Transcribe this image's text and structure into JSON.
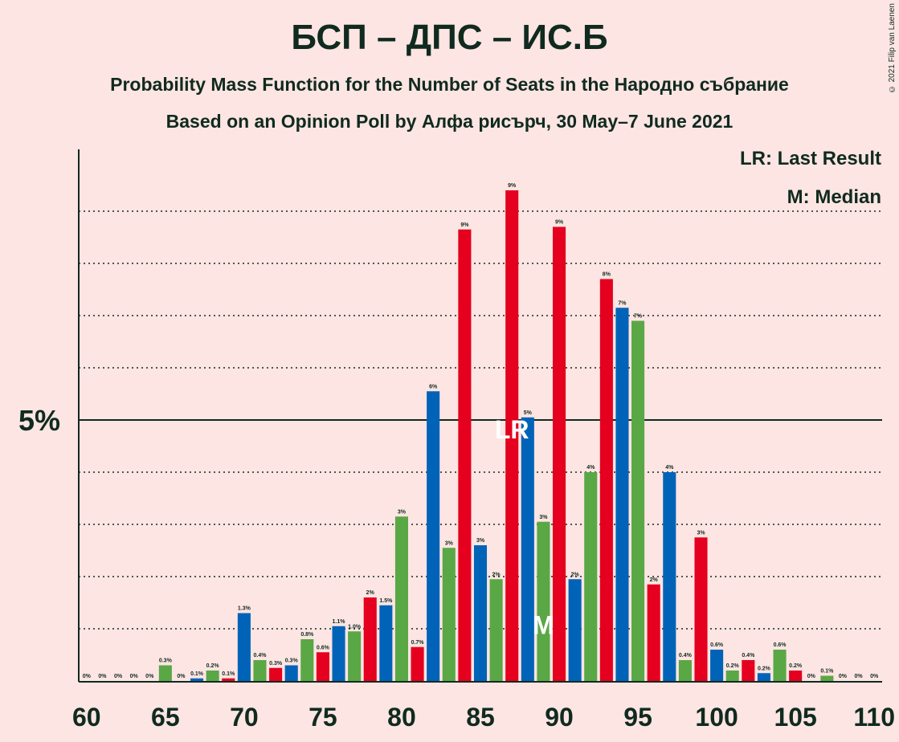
{
  "title": "БСП – ДПС – ИС.Б",
  "subtitle1": "Probability Mass Function for the Number of Seats in the Народно събрание",
  "subtitle2": "Based on an Opinion Poll by Алфа рисърч, 30 May–7 June 2021",
  "copyright": "© 2021 Filip van Laenen",
  "legend": {
    "lr": "LR: Last Result",
    "m": "M: Median"
  },
  "colors": {
    "background": "#FDE5E3",
    "blue": "#0063B8",
    "red": "#E4001E",
    "green": "#5AA746",
    "text": "#102A1F",
    "marker_text": "#FFFFFF"
  },
  "chart_data": {
    "type": "bar",
    "x": [
      60,
      61,
      62,
      63,
      64,
      65,
      66,
      67,
      68,
      69,
      70,
      71,
      72,
      73,
      74,
      75,
      76,
      77,
      78,
      79,
      80,
      81,
      82,
      83,
      84,
      85,
      86,
      87,
      88,
      89,
      90,
      91,
      92,
      93,
      94,
      95,
      96,
      97,
      98,
      99,
      100,
      101,
      102,
      103,
      104,
      105,
      106,
      107,
      108,
      109,
      110
    ],
    "values": [
      0,
      0,
      0,
      0,
      0,
      0.3,
      0,
      0.05,
      0.2,
      0.05,
      1.3,
      0.4,
      0.25,
      0.3,
      0.8,
      0.55,
      1.05,
      0.95,
      1.6,
      1.45,
      3.15,
      0.65,
      5.55,
      2.55,
      8.65,
      2.6,
      1.95,
      9.4,
      5.05,
      3.05,
      8.7,
      1.95,
      4.0,
      7.7,
      7.15,
      6.9,
      1.85,
      4.0,
      0.4,
      2.75,
      0.6,
      0.2,
      0.4,
      0.15,
      0.6,
      0.2,
      0,
      0.1,
      0,
      0,
      0
    ],
    "labels": [
      "0%",
      "0%",
      "0%",
      "0%",
      "0%",
      "0.3%",
      "0%",
      "0.1%",
      "0.2%",
      "0.1%",
      "1.3%",
      "0.4%",
      "0.3%",
      "0.3%",
      "0.8%",
      "0.6%",
      "1.1%",
      "1.0%",
      "2%",
      "1.5%",
      "3%",
      "0.7%",
      "6%",
      "3%",
      "9%",
      "3%",
      "2%",
      "9%",
      "5%",
      "3%",
      "9%",
      "2%",
      "4%",
      "8%",
      "7%",
      "7%",
      "2%",
      "4%",
      "0.4%",
      "3%",
      "0.6%",
      "0.2%",
      "0.4%",
      "0.2%",
      "0.6%",
      "0.2%",
      "0%",
      "0.1%",
      "0%",
      "0%",
      "0%"
    ],
    "colors": [
      "blue",
      "red",
      "green",
      "blue",
      "red",
      "green",
      "blue",
      "blue",
      "green",
      "red",
      "blue",
      "green",
      "red",
      "blue",
      "green",
      "red",
      "blue",
      "green",
      "red",
      "blue",
      "green",
      "red",
      "blue",
      "green",
      "red",
      "blue",
      "green",
      "red",
      "blue",
      "green",
      "red",
      "blue",
      "green",
      "red",
      "blue",
      "green",
      "red",
      "blue",
      "green",
      "red",
      "blue",
      "green",
      "red",
      "blue",
      "green",
      "red",
      "blue",
      "green",
      "red",
      "blue",
      "green"
    ],
    "xlim": [
      60,
      110
    ],
    "ylim": [
      0,
      10.2
    ],
    "x_ticks": [
      60,
      65,
      70,
      75,
      80,
      85,
      90,
      95,
      100,
      105,
      110
    ],
    "y_ticks": [
      {
        "value": 1,
        "label": ""
      },
      {
        "value": 2,
        "label": ""
      },
      {
        "value": 3,
        "label": ""
      },
      {
        "value": 4,
        "label": ""
      },
      {
        "value": 5,
        "label": "5%"
      },
      {
        "value": 6,
        "label": ""
      },
      {
        "value": 7,
        "label": ""
      },
      {
        "value": 8,
        "label": ""
      },
      {
        "value": 9,
        "label": ""
      }
    ],
    "last_result": {
      "x": 87,
      "label": "LR"
    },
    "median": {
      "x": 89,
      "label": "M"
    }
  }
}
